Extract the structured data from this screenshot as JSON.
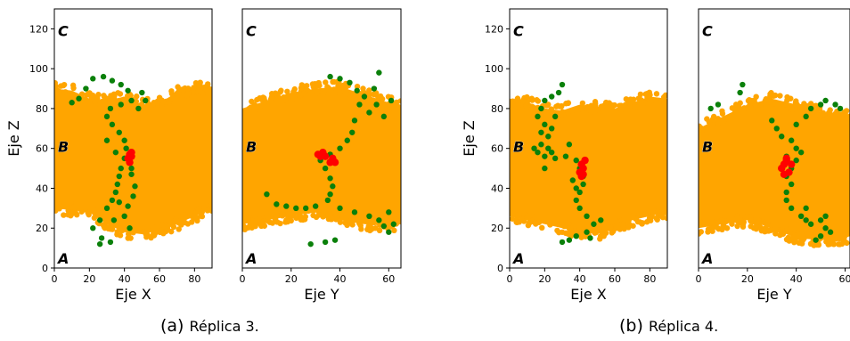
{
  "colors": {
    "membrane": "#ffa500",
    "path": "#0a800a",
    "site": "#ff0000",
    "axis": "#000000"
  },
  "captions": [
    {
      "tag": "(a)",
      "text": "Réplica 3."
    },
    {
      "tag": "(b)",
      "text": "Réplica 4."
    }
  ],
  "chart_data": [
    {
      "type": "scatter",
      "panel": "a-left",
      "xlabel": "Eje X",
      "ylabel": "Eje Z",
      "xlim": [
        0,
        90
      ],
      "ylim": [
        0,
        130
      ],
      "xticks": [
        0,
        20,
        40,
        60,
        80
      ],
      "yticks": [
        0,
        20,
        40,
        60,
        80,
        100,
        120
      ],
      "region_labels": [
        {
          "text": "C",
          "y": 119
        },
        {
          "text": "B",
          "y": 61
        },
        {
          "text": "A",
          "y": 5
        }
      ],
      "membrane": {
        "x_range": [
          0,
          90
        ],
        "top": [
          [
            0,
            90
          ],
          [
            10,
            89
          ],
          [
            20,
            85
          ],
          [
            30,
            84
          ],
          [
            40,
            86
          ],
          [
            50,
            82
          ],
          [
            60,
            83
          ],
          [
            70,
            88
          ],
          [
            80,
            90
          ],
          [
            90,
            91
          ]
        ],
        "bottom": [
          [
            0,
            30
          ],
          [
            10,
            29
          ],
          [
            20,
            28
          ],
          [
            30,
            22
          ],
          [
            40,
            18
          ],
          [
            50,
            17
          ],
          [
            60,
            19
          ],
          [
            70,
            22
          ],
          [
            80,
            26
          ],
          [
            90,
            30
          ]
        ]
      },
      "series": [
        {
          "values": [
            [
              18,
              90
            ],
            [
              22,
              95
            ],
            [
              28,
              96
            ],
            [
              33,
              94
            ],
            [
              38,
              92
            ],
            [
              42,
              89
            ],
            [
              44,
              84
            ],
            [
              38,
              82
            ],
            [
              32,
              80
            ],
            [
              30,
              76
            ],
            [
              33,
              72
            ],
            [
              37,
              68
            ],
            [
              40,
              64
            ],
            [
              41,
              60
            ],
            [
              40,
              55
            ],
            [
              38,
              50
            ],
            [
              37,
              46
            ],
            [
              36,
              42
            ],
            [
              35,
              38
            ],
            [
              33,
              34
            ],
            [
              30,
              30
            ],
            [
              26,
              24
            ],
            [
              22,
              20
            ],
            [
              27,
              15
            ],
            [
              26,
              12
            ],
            [
              32,
              13
            ],
            [
              34,
              24
            ],
            [
              40,
              26
            ],
            [
              42,
              31
            ],
            [
              45,
              36
            ],
            [
              46,
              41
            ],
            [
              44,
              47
            ],
            [
              48,
              80
            ],
            [
              50,
              88
            ],
            [
              52,
              84
            ],
            [
              14,
              85
            ],
            [
              10,
              83
            ],
            [
              30,
              64
            ],
            [
              35,
              58
            ],
            [
              44,
              50
            ],
            [
              37,
              33
            ],
            [
              43,
              20
            ]
          ]
        },
        {
          "values": [
            [
              42,
              55
            ],
            [
              43,
              57
            ],
            [
              44,
              58
            ],
            [
              43,
              53
            ],
            [
              44,
              56
            ]
          ]
        }
      ]
    },
    {
      "type": "scatter",
      "panel": "a-right",
      "xlabel": "Eje Y",
      "ylabel": "",
      "xlim": [
        0,
        65
      ],
      "ylim": [
        0,
        130
      ],
      "xticks": [
        0,
        20,
        40,
        60
      ],
      "yticks": [],
      "region_labels": [
        {
          "text": "C",
          "y": 119
        },
        {
          "text": "B",
          "y": 61
        },
        {
          "text": "A",
          "y": 5
        }
      ],
      "membrane": {
        "x_range": [
          0,
          65
        ],
        "top": [
          [
            0,
            80
          ],
          [
            10,
            84
          ],
          [
            20,
            88
          ],
          [
            30,
            90
          ],
          [
            40,
            91
          ],
          [
            50,
            87
          ],
          [
            60,
            83
          ],
          [
            65,
            82
          ]
        ],
        "bottom": [
          [
            0,
            22
          ],
          [
            10,
            24
          ],
          [
            20,
            26
          ],
          [
            30,
            28
          ],
          [
            40,
            24
          ],
          [
            50,
            22
          ],
          [
            60,
            21
          ],
          [
            65,
            22
          ]
        ]
      },
      "series": [
        {
          "values": [
            [
              36,
              96
            ],
            [
              40,
              95
            ],
            [
              44,
              93
            ],
            [
              47,
              89
            ],
            [
              50,
              86
            ],
            [
              55,
              82
            ],
            [
              58,
              76
            ],
            [
              52,
              78
            ],
            [
              48,
              82
            ],
            [
              46,
              74
            ],
            [
              45,
              68
            ],
            [
              43,
              64
            ],
            [
              40,
              60
            ],
            [
              36,
              57
            ],
            [
              32,
              54
            ],
            [
              34,
              50
            ],
            [
              36,
              45
            ],
            [
              37,
              41
            ],
            [
              36,
              37
            ],
            [
              35,
              34
            ],
            [
              30,
              31
            ],
            [
              26,
              30
            ],
            [
              22,
              30
            ],
            [
              18,
              31
            ],
            [
              14,
              32
            ],
            [
              10,
              37
            ],
            [
              40,
              30
            ],
            [
              46,
              28
            ],
            [
              52,
              26
            ],
            [
              56,
              24
            ],
            [
              58,
              21
            ],
            [
              60,
              18
            ],
            [
              62,
              22
            ],
            [
              60,
              28
            ],
            [
              28,
              12
            ],
            [
              34,
              13
            ],
            [
              38,
              14
            ],
            [
              56,
              98
            ],
            [
              54,
              90
            ],
            [
              61,
              84
            ]
          ]
        },
        {
          "values": [
            [
              31,
              57
            ],
            [
              33,
              58
            ],
            [
              34,
              56
            ],
            [
              37,
              55
            ],
            [
              38,
              53
            ],
            [
              36,
              53
            ],
            [
              32,
              56
            ]
          ]
        }
      ]
    },
    {
      "type": "scatter",
      "panel": "b-left",
      "xlabel": "Eje X",
      "ylabel": "Eje Z",
      "xlim": [
        0,
        90
      ],
      "ylim": [
        0,
        130
      ],
      "xticks": [
        0,
        20,
        40,
        60,
        80
      ],
      "yticks": [
        0,
        20,
        40,
        60,
        80,
        100,
        120
      ],
      "region_labels": [
        {
          "text": "C",
          "y": 119
        },
        {
          "text": "B",
          "y": 61
        },
        {
          "text": "A",
          "y": 5
        }
      ],
      "membrane": {
        "x_range": [
          0,
          90
        ],
        "top": [
          [
            0,
            84
          ],
          [
            10,
            83
          ],
          [
            20,
            80
          ],
          [
            30,
            79
          ],
          [
            40,
            82
          ],
          [
            50,
            81
          ],
          [
            60,
            80
          ],
          [
            70,
            83
          ],
          [
            80,
            86
          ],
          [
            90,
            85
          ]
        ],
        "bottom": [
          [
            0,
            26
          ],
          [
            10,
            24
          ],
          [
            20,
            22
          ],
          [
            30,
            20
          ],
          [
            40,
            18
          ],
          [
            50,
            17
          ],
          [
            60,
            20
          ],
          [
            70,
            24
          ],
          [
            80,
            26
          ],
          [
            90,
            28
          ]
        ]
      },
      "series": [
        {
          "values": [
            [
              30,
              92
            ],
            [
              28,
              88
            ],
            [
              24,
              86
            ],
            [
              20,
              84
            ],
            [
              18,
              80
            ],
            [
              16,
              76
            ],
            [
              20,
              72
            ],
            [
              24,
              70
            ],
            [
              22,
              66
            ],
            [
              18,
              62
            ],
            [
              16,
              58
            ],
            [
              20,
              56
            ],
            [
              26,
              55
            ],
            [
              32,
              56
            ],
            [
              38,
              54
            ],
            [
              40,
              50
            ],
            [
              42,
              46
            ],
            [
              42,
              42
            ],
            [
              40,
              38
            ],
            [
              38,
              34
            ],
            [
              40,
              30
            ],
            [
              44,
              26
            ],
            [
              48,
              22
            ],
            [
              52,
              24
            ],
            [
              44,
              18
            ],
            [
              38,
              16
            ],
            [
              34,
              14
            ],
            [
              30,
              13
            ],
            [
              46,
              15
            ],
            [
              22,
              60
            ],
            [
              24,
              58
            ],
            [
              34,
              62
            ],
            [
              20,
              50
            ],
            [
              14,
              60
            ],
            [
              26,
              76
            ],
            [
              18,
              68
            ],
            [
              36,
              44
            ],
            [
              38,
              40
            ]
          ]
        },
        {
          "values": [
            [
              40,
              48
            ],
            [
              41,
              52
            ],
            [
              42,
              50
            ],
            [
              43,
              54
            ],
            [
              42,
              47
            ],
            [
              41,
              46
            ]
          ]
        }
      ]
    },
    {
      "type": "scatter",
      "panel": "b-right",
      "xlabel": "Eje Y",
      "ylabel": "",
      "xlim": [
        0,
        62
      ],
      "ylim": [
        0,
        130
      ],
      "xticks": [
        0,
        20,
        40,
        60
      ],
      "yticks": [],
      "region_labels": [
        {
          "text": "C",
          "y": 119
        },
        {
          "text": "B",
          "y": 61
        },
        {
          "text": "A",
          "y": 5
        }
      ],
      "membrane": {
        "x_range": [
          0,
          62
        ],
        "top": [
          [
            0,
            70
          ],
          [
            10,
            76
          ],
          [
            20,
            82
          ],
          [
            30,
            85
          ],
          [
            40,
            82
          ],
          [
            50,
            78
          ],
          [
            60,
            76
          ],
          [
            62,
            76
          ]
        ],
        "bottom": [
          [
            0,
            20
          ],
          [
            10,
            22
          ],
          [
            20,
            24
          ],
          [
            30,
            20
          ],
          [
            40,
            15
          ],
          [
            50,
            14
          ],
          [
            60,
            15
          ],
          [
            62,
            16
          ]
        ]
      },
      "series": [
        {
          "values": [
            [
              18,
              92
            ],
            [
              17,
              88
            ],
            [
              8,
              82
            ],
            [
              5,
              80
            ],
            [
              30,
              74
            ],
            [
              32,
              70
            ],
            [
              34,
              66
            ],
            [
              38,
              64
            ],
            [
              40,
              60
            ],
            [
              42,
              58
            ],
            [
              40,
              54
            ],
            [
              38,
              50
            ],
            [
              36,
              46
            ],
            [
              38,
              42
            ],
            [
              36,
              38
            ],
            [
              36,
              34
            ],
            [
              38,
              30
            ],
            [
              42,
              26
            ],
            [
              44,
              24
            ],
            [
              46,
              22
            ],
            [
              50,
              24
            ],
            [
              52,
              20
            ],
            [
              54,
              18
            ],
            [
              50,
              16
            ],
            [
              48,
              14
            ],
            [
              52,
              26
            ],
            [
              44,
              30
            ],
            [
              40,
              72
            ],
            [
              44,
              76
            ],
            [
              46,
              80
            ],
            [
              50,
              82
            ],
            [
              52,
              84
            ],
            [
              56,
              82
            ],
            [
              58,
              80
            ],
            [
              36,
              56
            ]
          ]
        },
        {
          "values": [
            [
              34,
              50
            ],
            [
              35,
              52
            ],
            [
              36,
              54
            ],
            [
              37,
              48
            ],
            [
              38,
              52
            ],
            [
              35,
              47
            ],
            [
              36,
              55
            ]
          ]
        }
      ]
    }
  ]
}
